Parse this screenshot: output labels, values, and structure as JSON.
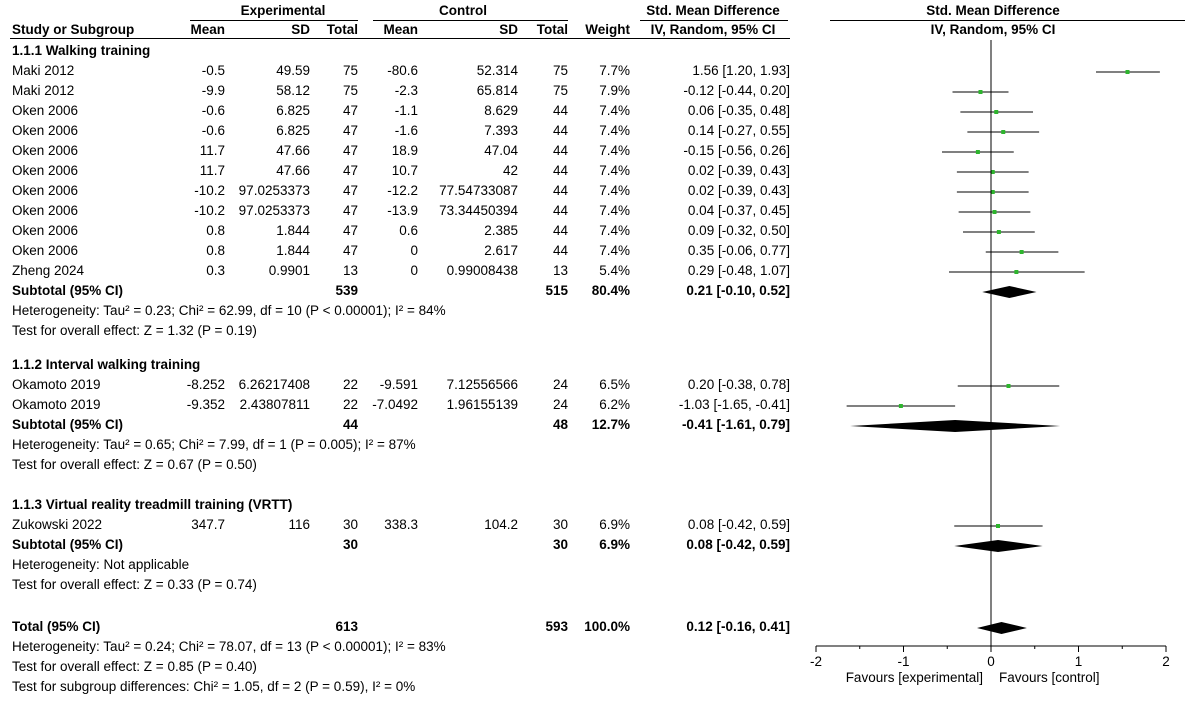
{
  "header": {
    "experimental": "Experimental",
    "control": "Control",
    "smd_left": "Std. Mean Difference",
    "smd_right": "Std. Mean Difference",
    "study": "Study or Subgroup",
    "mean_e": "Mean",
    "sd_e": "SD",
    "total_e": "Total",
    "mean_c": "Mean",
    "sd_c": "SD",
    "total_c": "Total",
    "weight": "Weight",
    "method_left": "IV, Random, 95% CI",
    "method_right": "IV, Random, 95% CI"
  },
  "chart_data": {
    "type": "forest",
    "measure": "Std. Mean Difference",
    "method": "IV, Random, 95% CI",
    "xlim": [
      -2,
      2
    ],
    "xticks": [
      "-2",
      "-1",
      "0",
      "1",
      "2"
    ],
    "favours_left": "Favours [experimental]",
    "favours_right": "Favours [control]",
    "groups": [
      {
        "title": "1.1.1 Walking training",
        "studies": [
          {
            "name": "Maki 2012",
            "mean_e": "-0.5",
            "sd_e": "49.59",
            "n_e": "75",
            "mean_c": "-80.6",
            "sd_c": "52.314",
            "n_c": "75",
            "weight": "7.7%",
            "ci_text": "1.56 [1.20, 1.93]",
            "est": 1.56,
            "lo": 1.2,
            "hi": 1.93
          },
          {
            "name": "Maki 2012",
            "mean_e": "-9.9",
            "sd_e": "58.12",
            "n_e": "75",
            "mean_c": "-2.3",
            "sd_c": "65.814",
            "n_c": "75",
            "weight": "7.9%",
            "ci_text": "-0.12 [-0.44, 0.20]",
            "est": -0.12,
            "lo": -0.44,
            "hi": 0.2
          },
          {
            "name": "Oken 2006",
            "mean_e": "-0.6",
            "sd_e": "6.825",
            "n_e": "47",
            "mean_c": "-1.1",
            "sd_c": "8.629",
            "n_c": "44",
            "weight": "7.4%",
            "ci_text": "0.06 [-0.35, 0.48]",
            "est": 0.06,
            "lo": -0.35,
            "hi": 0.48
          },
          {
            "name": "Oken 2006",
            "mean_e": "-0.6",
            "sd_e": "6.825",
            "n_e": "47",
            "mean_c": "-1.6",
            "sd_c": "7.393",
            "n_c": "44",
            "weight": "7.4%",
            "ci_text": "0.14 [-0.27, 0.55]",
            "est": 0.14,
            "lo": -0.27,
            "hi": 0.55
          },
          {
            "name": "Oken 2006",
            "mean_e": "11.7",
            "sd_e": "47.66",
            "n_e": "47",
            "mean_c": "18.9",
            "sd_c": "47.04",
            "n_c": "44",
            "weight": "7.4%",
            "ci_text": "-0.15 [-0.56, 0.26]",
            "est": -0.15,
            "lo": -0.56,
            "hi": 0.26
          },
          {
            "name": "Oken 2006",
            "mean_e": "11.7",
            "sd_e": "47.66",
            "n_e": "47",
            "mean_c": "10.7",
            "sd_c": "42",
            "n_c": "44",
            "weight": "7.4%",
            "ci_text": "0.02 [-0.39, 0.43]",
            "est": 0.02,
            "lo": -0.39,
            "hi": 0.43
          },
          {
            "name": "Oken 2006",
            "mean_e": "-10.2",
            "sd_e": "97.0253373",
            "n_e": "47",
            "mean_c": "-12.2",
            "sd_c": "77.54733087",
            "n_c": "44",
            "weight": "7.4%",
            "ci_text": "0.02 [-0.39, 0.43]",
            "est": 0.02,
            "lo": -0.39,
            "hi": 0.43
          },
          {
            "name": "Oken 2006",
            "mean_e": "-10.2",
            "sd_e": "97.0253373",
            "n_e": "47",
            "mean_c": "-13.9",
            "sd_c": "73.34450394",
            "n_c": "44",
            "weight": "7.4%",
            "ci_text": "0.04 [-0.37, 0.45]",
            "est": 0.04,
            "lo": -0.37,
            "hi": 0.45
          },
          {
            "name": "Oken 2006",
            "mean_e": "0.8",
            "sd_e": "1.844",
            "n_e": "47",
            "mean_c": "0.6",
            "sd_c": "2.385",
            "n_c": "44",
            "weight": "7.4%",
            "ci_text": "0.09 [-0.32, 0.50]",
            "est": 0.09,
            "lo": -0.32,
            "hi": 0.5
          },
          {
            "name": "Oken 2006",
            "mean_e": "0.8",
            "sd_e": "1.844",
            "n_e": "47",
            "mean_c": "0",
            "sd_c": "2.617",
            "n_c": "44",
            "weight": "7.4%",
            "ci_text": "0.35 [-0.06, 0.77]",
            "est": 0.35,
            "lo": -0.06,
            "hi": 0.77
          },
          {
            "name": "Zheng 2024",
            "mean_e": "0.3",
            "sd_e": "0.9901",
            "n_e": "13",
            "mean_c": "0",
            "sd_c": "0.99008438",
            "n_c": "13",
            "weight": "5.4%",
            "ci_text": "0.29 [-0.48, 1.07]",
            "est": 0.29,
            "lo": -0.48,
            "hi": 1.07
          }
        ],
        "subtotal": {
          "label": "Subtotal (95% CI)",
          "n_e": "539",
          "n_c": "515",
          "weight": "80.4%",
          "ci_text": "0.21 [-0.10, 0.52]",
          "est": 0.21,
          "lo": -0.1,
          "hi": 0.52
        },
        "heterogeneity": "Heterogeneity: Tau² = 0.23; Chi² = 62.99, df = 10 (P < 0.00001); I² = 84%",
        "overall": "Test for overall effect: Z = 1.32 (P = 0.19)"
      },
      {
        "title": "1.1.2 Interval walking training",
        "studies": [
          {
            "name": "Okamoto 2019",
            "mean_e": "-8.252",
            "sd_e": "6.26217408",
            "n_e": "22",
            "mean_c": "-9.591",
            "sd_c": "7.12556566",
            "n_c": "24",
            "weight": "6.5%",
            "ci_text": "0.20 [-0.38, 0.78]",
            "est": 0.2,
            "lo": -0.38,
            "hi": 0.78
          },
          {
            "name": "Okamoto 2019",
            "mean_e": "-9.352",
            "sd_e": "2.43807811",
            "n_e": "22",
            "mean_c": "-7.0492",
            "sd_c": "1.96155139",
            "n_c": "24",
            "weight": "6.2%",
            "ci_text": "-1.03 [-1.65, -0.41]",
            "est": -1.03,
            "lo": -1.65,
            "hi": -0.41
          }
        ],
        "subtotal": {
          "label": "Subtotal (95% CI)",
          "n_e": "44",
          "n_c": "48",
          "weight": "12.7%",
          "ci_text": "-0.41 [-1.61, 0.79]",
          "est": -0.41,
          "lo": -1.61,
          "hi": 0.79
        },
        "heterogeneity": "Heterogeneity: Tau² = 0.65; Chi² = 7.99, df = 1 (P = 0.005); I² = 87%",
        "overall": "Test for overall effect: Z = 0.67 (P = 0.50)"
      },
      {
        "title": "1.1.3 Virtual reality treadmill training (VRTT)",
        "studies": [
          {
            "name": "Zukowski 2022",
            "mean_e": "347.7",
            "sd_e": "116",
            "n_e": "30",
            "mean_c": "338.3",
            "sd_c": "104.2",
            "n_c": "30",
            "weight": "6.9%",
            "ci_text": "0.08 [-0.42, 0.59]",
            "est": 0.08,
            "lo": -0.42,
            "hi": 0.59
          }
        ],
        "subtotal": {
          "label": "Subtotal (95% CI)",
          "n_e": "30",
          "n_c": "30",
          "weight": "6.9%",
          "ci_text": "0.08 [-0.42, 0.59]",
          "est": 0.08,
          "lo": -0.42,
          "hi": 0.59
        },
        "heterogeneity": "Heterogeneity: Not applicable",
        "overall": "Test for overall effect: Z = 0.33 (P = 0.74)"
      }
    ],
    "total": {
      "label": "Total (95% CI)",
      "n_e": "613",
      "n_c": "593",
      "weight": "100.0%",
      "ci_text": "0.12 [-0.16, 0.41]",
      "est": 0.12,
      "lo": -0.16,
      "hi": 0.41
    },
    "total_heterogeneity": "Heterogeneity: Tau² = 0.24; Chi² = 78.07, df = 13 (P < 0.00001); I² = 83%",
    "total_overall": "Test for overall effect: Z = 0.85 (P = 0.40)",
    "subgroup_differences": "Test for subgroup differences: Chi² = 1.05, df = 2 (P = 0.59), I² = 0%",
    "colors": {
      "study_marker": "#2db52d",
      "diamond": "#000000",
      "lines": "#000000"
    }
  }
}
